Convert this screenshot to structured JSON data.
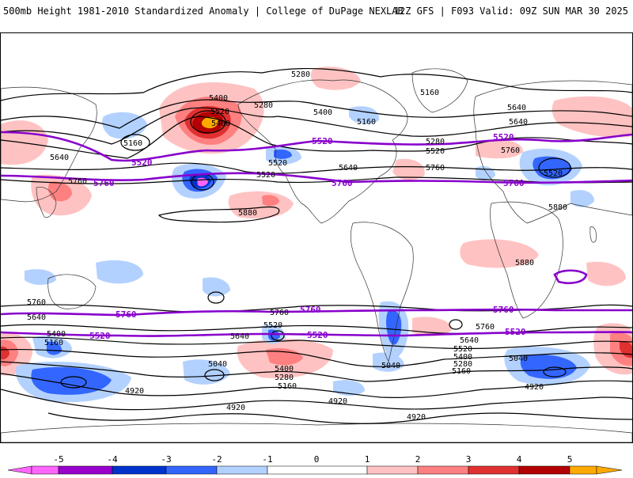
{
  "header": {
    "left_title": "500mb Height 1981-2010 Standardized Anomaly | College of DuPage NEXLAB",
    "right_title": "12Z GFS | F093 Valid: 09Z SUN MAR 30 2025"
  },
  "colors": {
    "neg5": "#ff66ff",
    "neg4": "#9900cc",
    "neg3": "#0033cc",
    "neg2": "#3366ff",
    "neg1": "#b3d1ff",
    "pos1": "#ffc2c2",
    "pos2": "#ff8080",
    "pos3": "#e03030",
    "pos4": "#b30000",
    "pos5": "#ffaa00",
    "contour": "#000000",
    "highlight_contour": "#8800cc"
  },
  "colorbar": {
    "ticks": [
      "-5",
      "-4",
      "-3",
      "-2",
      "-1",
      "0",
      "1",
      "2",
      "3",
      "4",
      "5"
    ]
  },
  "contour_labels": [
    {
      "id": "a1",
      "text": "5280"
    },
    {
      "id": "a2",
      "text": "5160"
    },
    {
      "id": "a3",
      "text": "5400"
    },
    {
      "id": "a4",
      "text": "5280"
    },
    {
      "id": "a5",
      "text": "5400"
    },
    {
      "id": "a6",
      "text": "5160"
    },
    {
      "id": "a7",
      "text": "5640"
    },
    {
      "id": "a8",
      "text": "5520"
    },
    {
      "id": "a9",
      "text": "5400"
    },
    {
      "id": "a10",
      "text": "5160"
    },
    {
      "id": "a11",
      "text": "5640"
    },
    {
      "id": "a12",
      "text": "5760"
    },
    {
      "id": "a13",
      "text": "5520"
    },
    {
      "id": "a14",
      "text": "5640"
    },
    {
      "id": "a15",
      "text": "5760"
    },
    {
      "id": "a16",
      "text": "5520"
    },
    {
      "id": "a17",
      "text": "5280"
    },
    {
      "id": "a18",
      "text": "5520"
    },
    {
      "id": "a19",
      "text": "5640"
    },
    {
      "id": "a20",
      "text": "5760"
    },
    {
      "id": "a21",
      "text": "5520"
    },
    {
      "id": "a22",
      "text": "5880"
    },
    {
      "id": "a23",
      "text": "5880"
    },
    {
      "id": "a24",
      "text": "5880"
    },
    {
      "id": "a25",
      "text": "5760"
    },
    {
      "id": "a26",
      "text": "5640"
    },
    {
      "id": "a27",
      "text": "5400"
    },
    {
      "id": "a28",
      "text": "5160"
    },
    {
      "id": "a29",
      "text": "5760"
    },
    {
      "id": "a30",
      "text": "5640"
    },
    {
      "id": "a31",
      "text": "5520"
    },
    {
      "id": "a32",
      "text": "5760"
    },
    {
      "id": "a33",
      "text": "5640"
    },
    {
      "id": "a34",
      "text": "5520"
    },
    {
      "id": "a35",
      "text": "5400"
    },
    {
      "id": "a36",
      "text": "5280"
    },
    {
      "id": "a37",
      "text": "5160"
    },
    {
      "id": "a38",
      "text": "5040"
    },
    {
      "id": "a39",
      "text": "5400"
    },
    {
      "id": "a40",
      "text": "5280"
    },
    {
      "id": "a41",
      "text": "5160"
    },
    {
      "id": "a42",
      "text": "4920"
    },
    {
      "id": "a43",
      "text": "5040"
    },
    {
      "id": "a44",
      "text": "4920"
    },
    {
      "id": "a45",
      "text": "4920"
    },
    {
      "id": "a46",
      "text": "5040"
    },
    {
      "id": "a47",
      "text": "4920"
    },
    {
      "id": "a48",
      "text": "4920"
    }
  ],
  "highlight_labels": [
    {
      "id": "h1",
      "text": "5520"
    },
    {
      "id": "h2",
      "text": "5520"
    },
    {
      "id": "h3",
      "text": "5520"
    },
    {
      "id": "h4",
      "text": "5760"
    },
    {
      "id": "h5",
      "text": "5760"
    },
    {
      "id": "h6",
      "text": "5760"
    },
    {
      "id": "h7",
      "text": "5760"
    },
    {
      "id": "h8",
      "text": "5760"
    },
    {
      "id": "h9",
      "text": "5760"
    },
    {
      "id": "h10",
      "text": "5520"
    },
    {
      "id": "h11",
      "text": "5520"
    },
    {
      "id": "h12",
      "text": "5520"
    }
  ]
}
